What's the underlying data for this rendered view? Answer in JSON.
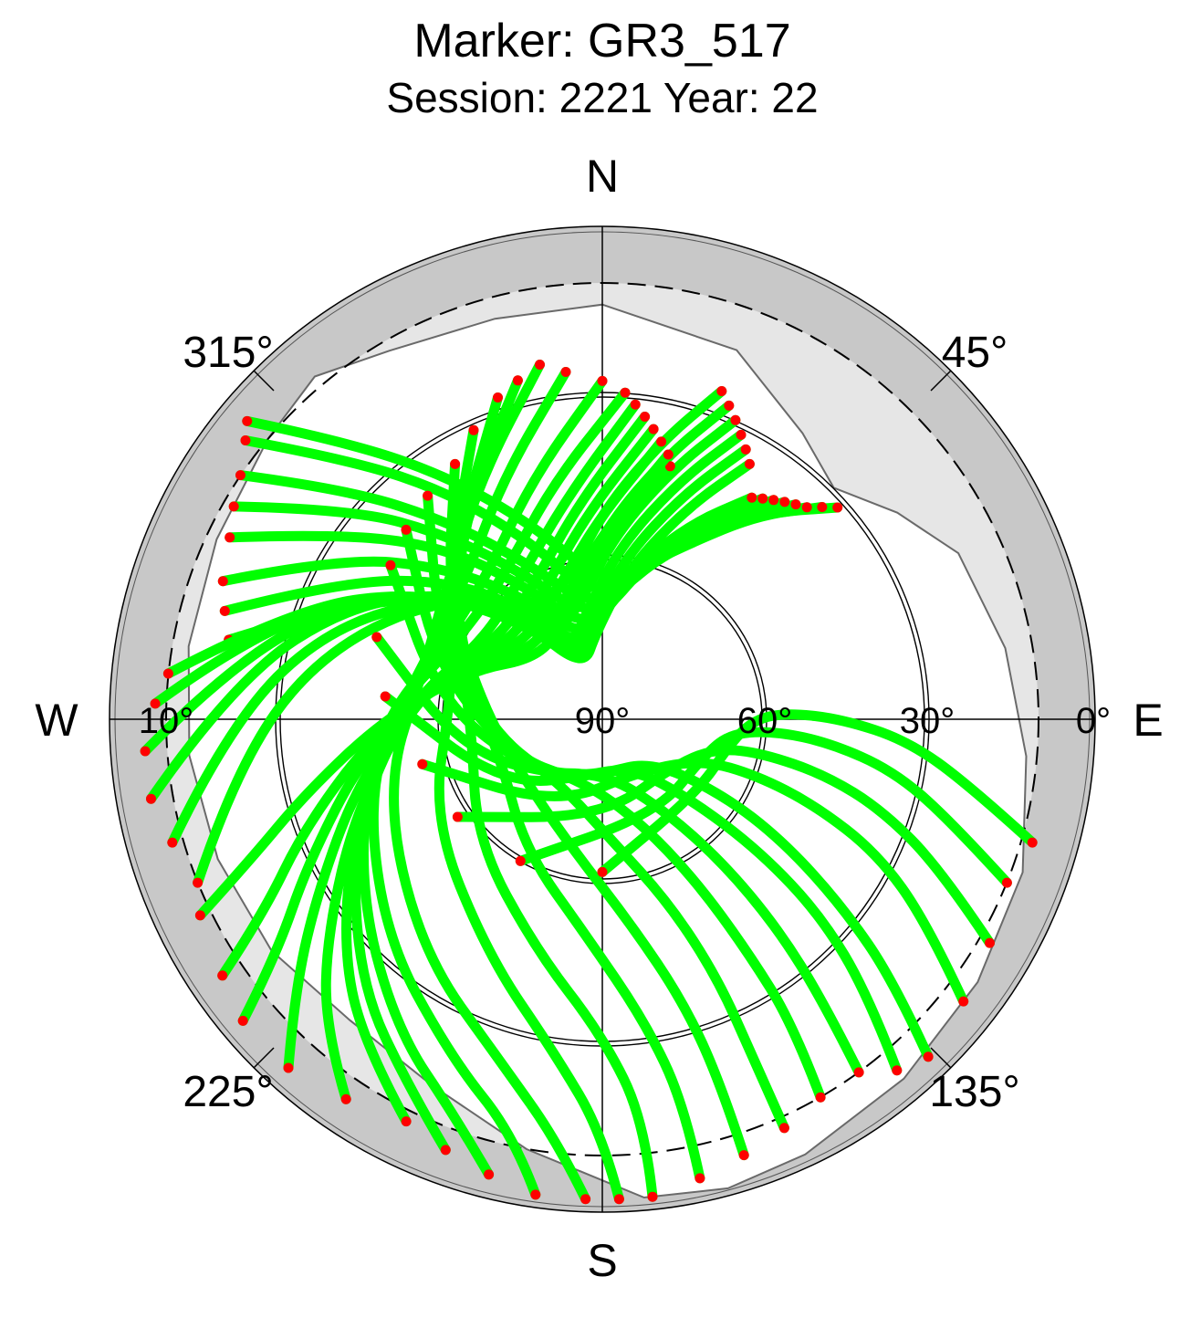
{
  "title": "Marker: GR3_517",
  "subtitle": "Session: 2221 Year: 22",
  "compass": {
    "n": "N",
    "s": "S",
    "w": "W",
    "e": "E"
  },
  "azimuth_labels": [
    "315°",
    "45°",
    "225°",
    "135°"
  ],
  "elevation_labels": [
    "10°",
    "90°",
    "60°",
    "30°",
    "0°"
  ],
  "colors": {
    "track": "#00ff00",
    "track_end": "#ff0000",
    "outer_ring": "#c8c8c8",
    "obstruction": "#e6e6e6",
    "visible": "#ffffff"
  },
  "chart_data": {
    "type": "scatter",
    "projection": "polar-skyplot",
    "azimuth_range_deg": [
      0,
      360
    ],
    "elevation_range_deg": [
      0,
      90
    ],
    "elevation_rings_deg": [
      0,
      10,
      30,
      60
    ],
    "tracks": [
      {
        "az": [
          310,
          318,
          328,
          340,
          355,
          10,
          25,
          38,
          48
        ],
        "el": [
          5,
          22,
          38,
          52,
          63,
          63,
          55,
          42,
          32
        ]
      },
      {
        "az": [
          308,
          316,
          326,
          338,
          352,
          8,
          22,
          36,
          46
        ],
        "el": [
          7,
          24,
          40,
          55,
          66,
          65,
          56,
          44,
          34
        ]
      },
      {
        "az": [
          304,
          312,
          322,
          334,
          350,
          6,
          20,
          34,
          44
        ],
        "el": [
          10,
          27,
          44,
          58,
          68,
          67,
          58,
          46,
          36
        ]
      },
      {
        "az": [
          300,
          310,
          320,
          332,
          348,
          4,
          18,
          32,
          42
        ],
        "el": [
          12,
          30,
          46,
          60,
          70,
          68,
          59,
          47,
          37
        ]
      },
      {
        "az": [
          296,
          306,
          318,
          330,
          346,
          2,
          16,
          30,
          40
        ],
        "el": [
          14,
          32,
          48,
          62,
          72,
          70,
          60,
          48,
          38
        ]
      },
      {
        "az": [
          290,
          302,
          314,
          328,
          344,
          0,
          14,
          28,
          38
        ],
        "el": [
          16,
          34,
          50,
          64,
          74,
          71,
          61,
          49,
          39
        ]
      },
      {
        "az": [
          286,
          298,
          312,
          326,
          342,
          358,
          12,
          26,
          36
        ],
        "el": [
          18,
          36,
          52,
          66,
          76,
          72,
          62,
          50,
          40
        ]
      },
      {
        "az": [
          282,
          294,
          308,
          324,
          340,
          356,
          10,
          24,
          34
        ],
        "el": [
          20,
          38,
          54,
          68,
          78,
          73,
          63,
          51,
          41
        ]
      },
      {
        "az": [
          276,
          290,
          306,
          322,
          340,
          356,
          10,
          22,
          30
        ],
        "el": [
          10,
          30,
          50,
          68,
          80,
          74,
          62,
          48,
          36
        ]
      },
      {
        "az": [
          272,
          286,
          302,
          320,
          338,
          354,
          8,
          20,
          28
        ],
        "el": [
          8,
          26,
          46,
          64,
          78,
          72,
          60,
          46,
          34
        ]
      },
      {
        "az": [
          266,
          282,
          300,
          318,
          336,
          352,
          6,
          18,
          26
        ],
        "el": [
          6,
          24,
          44,
          62,
          76,
          70,
          58,
          44,
          32
        ]
      },
      {
        "az": [
          260,
          276,
          296,
          316,
          334,
          350,
          4,
          16,
          24
        ],
        "el": [
          6,
          22,
          40,
          58,
          72,
          68,
          56,
          42,
          30
        ]
      },
      {
        "az": [
          254,
          270,
          290,
          312,
          332,
          348,
          2,
          14,
          22
        ],
        "el": [
          8,
          22,
          38,
          56,
          70,
          66,
          54,
          40,
          28
        ]
      },
      {
        "az": [
          248,
          262,
          282,
          306,
          328,
          346,
          0,
          12,
          20
        ],
        "el": [
          10,
          22,
          36,
          52,
          66,
          64,
          52,
          38,
          26
        ]
      },
      {
        "az": [
          244,
          248,
          256,
          270,
          290,
          315,
          340,
          0,
          15
        ],
        "el": [
          8,
          20,
          34,
          50,
          64,
          74,
          70,
          58,
          42
        ]
      },
      {
        "az": [
          236,
          240,
          250,
          266,
          288,
          314,
          340,
          0,
          14
        ],
        "el": [
          6,
          18,
          32,
          48,
          62,
          72,
          68,
          56,
          40
        ]
      },
      {
        "az": [
          230,
          234,
          244,
          262,
          286,
          312,
          338,
          358,
          12
        ],
        "el": [
          4,
          16,
          30,
          46,
          60,
          70,
          66,
          54,
          38
        ]
      },
      {
        "az": [
          222,
          228,
          238,
          256,
          282,
          310,
          336,
          356,
          10
        ],
        "el": [
          4,
          14,
          28,
          44,
          58,
          68,
          64,
          52,
          36
        ]
      },
      {
        "az": [
          214,
          222,
          232,
          250,
          278,
          308,
          334,
          354,
          8
        ],
        "el": [
          6,
          14,
          26,
          42,
          56,
          66,
          62,
          50,
          34
        ]
      },
      {
        "az": [
          206,
          216,
          228,
          246,
          274,
          304,
          330,
          352,
          6
        ],
        "el": [
          8,
          16,
          26,
          40,
          54,
          64,
          60,
          48,
          32
        ]
      },
      {
        "az": [
          200,
          208,
          222,
          242,
          270,
          300,
          326,
          348,
          4
        ],
        "el": [
          6,
          14,
          24,
          38,
          50,
          60,
          58,
          46,
          30
        ]
      },
      {
        "az": [
          194,
          200,
          214,
          236,
          266,
          296,
          322,
          344,
          0
        ],
        "el": [
          4,
          12,
          22,
          36,
          48,
          58,
          56,
          44,
          28
        ]
      },
      {
        "az": [
          188,
          192,
          204,
          226,
          258,
          290,
          316,
          338,
          354
        ],
        "el": [
          2,
          12,
          22,
          34,
          46,
          56,
          54,
          42,
          26
        ]
      },
      {
        "az": [
          182,
          186,
          196,
          218,
          252,
          286,
          312,
          334,
          350
        ],
        "el": [
          2,
          12,
          24,
          36,
          48,
          56,
          52,
          40,
          24
        ]
      },
      {
        "az": [
          178,
          180,
          188,
          206,
          240,
          278,
          306,
          330,
          346
        ],
        "el": [
          2,
          14,
          28,
          42,
          54,
          62,
          56,
          42,
          26
        ]
      },
      {
        "az": [
          174,
          174,
          180,
          196,
          226,
          266,
          298,
          324,
          342
        ],
        "el": [
          2,
          16,
          32,
          46,
          58,
          66,
          60,
          46,
          28
        ]
      },
      {
        "az": [
          168,
          168,
          172,
          184,
          210,
          250,
          288,
          316,
          336
        ],
        "el": [
          4,
          18,
          34,
          50,
          62,
          70,
          64,
          50,
          32
        ]
      },
      {
        "az": [
          162,
          162,
          164,
          172,
          194,
          234,
          276,
          308,
          330
        ],
        "el": [
          6,
          20,
          36,
          52,
          66,
          72,
          68,
          54,
          36
        ]
      },
      {
        "az": [
          156,
          156,
          156,
          160,
          176,
          216,
          262,
          298,
          322
        ],
        "el": [
          8,
          22,
          38,
          54,
          68,
          76,
          70,
          56,
          38
        ]
      },
      {
        "az": [
          150,
          148,
          148,
          150,
          160,
          196,
          248,
          288,
          314
        ],
        "el": [
          10,
          24,
          40,
          56,
          70,
          78,
          72,
          58,
          40
        ]
      },
      {
        "az": [
          144,
          142,
          140,
          140,
          146,
          176,
          232,
          276,
          306
        ],
        "el": [
          10,
          24,
          40,
          56,
          70,
          80,
          74,
          60,
          42
        ]
      },
      {
        "az": [
          140,
          136,
          132,
          130,
          132,
          150,
          206,
          256,
          290
        ],
        "el": [
          6,
          20,
          36,
          52,
          68,
          80,
          78,
          64,
          46
        ]
      },
      {
        "az": [
          136,
          132,
          128,
          124,
          122,
          130,
          180,
          236,
          276
        ],
        "el": [
          4,
          18,
          34,
          50,
          64,
          78,
          80,
          68,
          50
        ]
      },
      {
        "az": [
          128,
          122,
          116,
          112,
          110,
          112,
          140,
          208,
          256
        ],
        "el": [
          6,
          20,
          34,
          48,
          60,
          70,
          78,
          72,
          56
        ]
      },
      {
        "az": [
          120,
          114,
          108,
          104,
          102,
          104,
          120,
          180,
          236
        ],
        "el": [
          8,
          22,
          36,
          48,
          60,
          68,
          74,
          72,
          58
        ]
      },
      {
        "az": [
          112,
          106,
          100,
          96,
          94,
          96,
          108,
          150,
          210
        ],
        "el": [
          10,
          24,
          36,
          48,
          58,
          66,
          70,
          70,
          60
        ]
      },
      {
        "az": [
          106,
          100,
          94,
          90,
          88,
          90,
          100,
          128,
          180
        ],
        "el": [
          8,
          22,
          34,
          46,
          56,
          62,
          66,
          68,
          62
        ]
      }
    ]
  }
}
